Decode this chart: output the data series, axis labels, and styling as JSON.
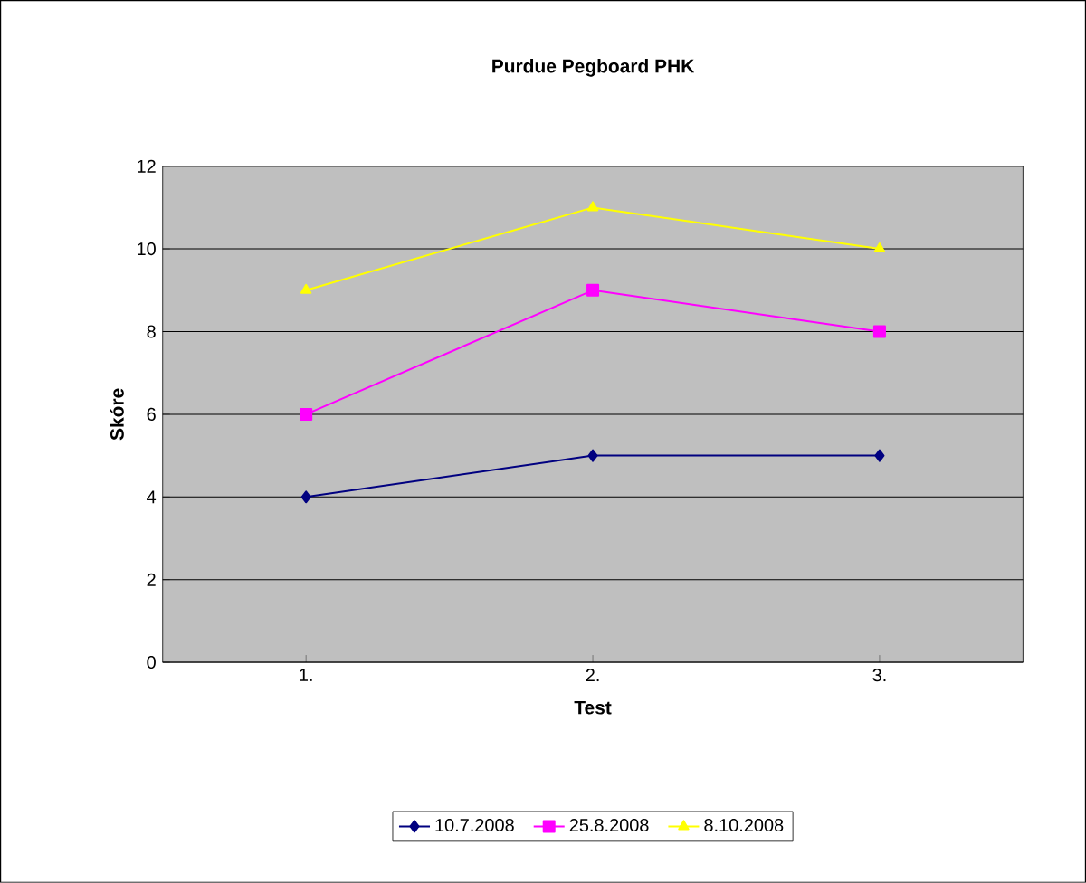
{
  "chart_data": {
    "type": "line",
    "title": "Purdue Pegboard PHK",
    "xlabel": "Test",
    "ylabel": "Skóre",
    "categories": [
      "1.",
      "2.",
      "3."
    ],
    "series": [
      {
        "name": "10.7.2008",
        "color": "#000080",
        "values": [
          4,
          5,
          5
        ],
        "marker": "diamond"
      },
      {
        "name": "25.8.2008",
        "color": "#ff00ff",
        "values": [
          6,
          9,
          8
        ],
        "marker": "square"
      },
      {
        "name": "8.10.2008",
        "color": "#ffff00",
        "values": [
          9,
          11,
          10
        ],
        "marker": "triangle"
      }
    ],
    "ylim": [
      0,
      12
    ],
    "yticks": [
      0,
      2,
      4,
      6,
      8,
      10,
      12
    ],
    "grid": "y",
    "legend": "bottom",
    "line_style": "solid"
  }
}
